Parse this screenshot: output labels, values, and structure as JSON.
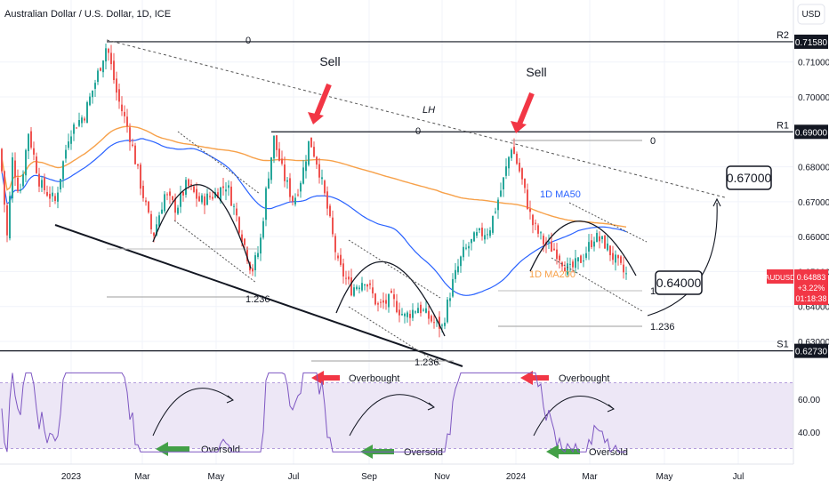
{
  "header": {
    "title": "Australian Dollar / U.S. Dollar, 1D, ICE",
    "currency": "USD"
  },
  "colors": {
    "up": "#26a69a",
    "down": "#ef5350",
    "ma50": "#2962ff",
    "ma200": "#f7a14a",
    "rsi": "#7e57c2",
    "rsi_band": "#ede7f6",
    "arrow_red": "#f23645",
    "arrow_green": "#43a047",
    "price_badge": "#f23645"
  },
  "chart_data": [
    {
      "type": "candlestick",
      "title": "Australian Dollar / U.S. Dollar, 1D, ICE",
      "x_ticks": [
        "2023",
        "Mar",
        "May",
        "Jul",
        "Sep",
        "Nov",
        "2024",
        "Mar",
        "May",
        "Jul"
      ],
      "y_ticks": [
        "0.71000",
        "0.70000",
        "0.68000",
        "0.67000",
        "0.66000",
        "0.65000",
        "0.64000",
        "0.63000"
      ],
      "ylim": [
        0.6235,
        0.7225
      ],
      "levels": [
        {
          "name": "R2",
          "value": 0.7158,
          "label": "0.71580"
        },
        {
          "name": "R1",
          "value": 0.69,
          "label": "0.69000"
        },
        {
          "name": "S1",
          "value": 0.6273,
          "label": "0.62730"
        }
      ],
      "current_price": {
        "symbol": "AUDUSD",
        "value": "0.64883",
        "change": "+3.22%",
        "countdown": "01:18:38"
      },
      "series": [
        {
          "name": "1D MA50"
        },
        {
          "name": "1D MA200"
        }
      ],
      "annotations": {
        "sell": [
          "Sell",
          "Sell"
        ],
        "lh": "LH",
        "fib_zero": [
          "0",
          "0",
          "0"
        ],
        "fib_ext": [
          "1.236",
          "1.236",
          "1.236"
        ],
        "fib_one": "1",
        "target_low": "0.64000",
        "target_high": "0.67000"
      }
    },
    {
      "type": "line",
      "title": "RSI",
      "y_ticks": [
        "60.00",
        "40.00"
      ],
      "ylim": [
        25,
        82
      ],
      "bands": [
        30,
        70
      ],
      "annotations": {
        "overbought": [
          "Overbought",
          "Overbought"
        ],
        "oversold": [
          "Oversold",
          "Oversold",
          "Oversold"
        ]
      }
    }
  ]
}
